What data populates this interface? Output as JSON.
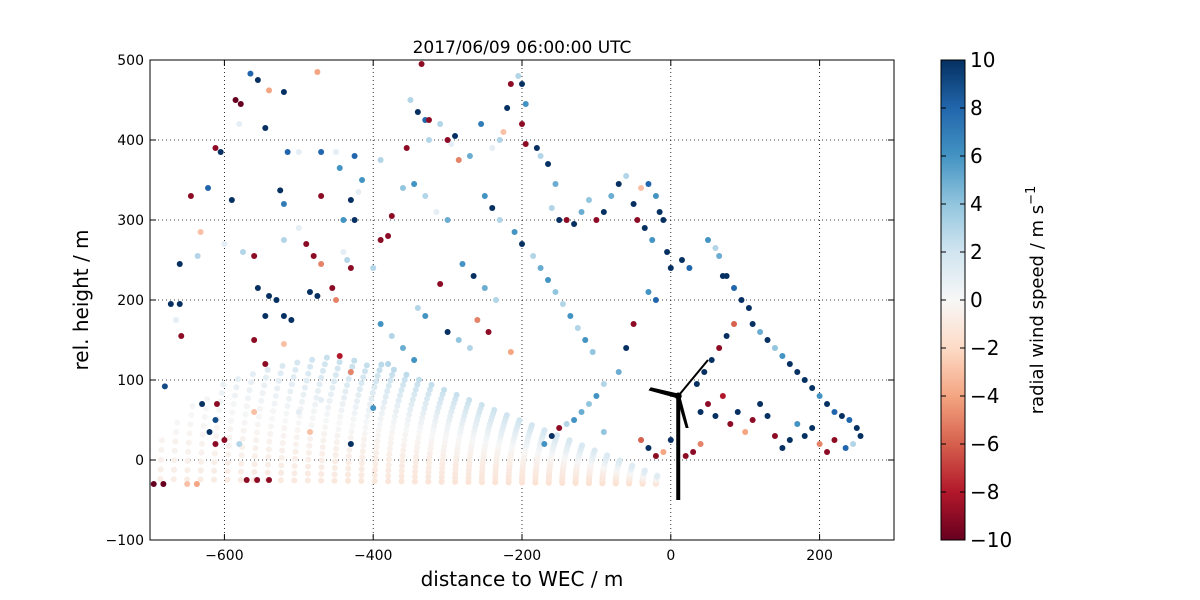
{
  "chart_data": {
    "type": "scatter",
    "title": "2017/06/09 06:00:00 UTC",
    "xlabel": "distance to WEC / m",
    "ylabel": "rel. height / m",
    "xlim": [
      -700,
      300
    ],
    "ylim": [
      -100,
      500
    ],
    "xticks": [
      "−600",
      "−400",
      "−200",
      "0",
      "200"
    ],
    "yticks": [
      "−100",
      "0",
      "100",
      "200",
      "300",
      "400",
      "500"
    ],
    "grid": true,
    "colorbar": {
      "label": "radial wind speed / m s",
      "label_superscript": "−1",
      "range": [
        -10,
        10
      ],
      "ticks": [
        "−10",
        "−8",
        "−6",
        "−4",
        "−2",
        "0",
        "2",
        "4",
        "6",
        "8",
        "10"
      ],
      "colormap": "RdBu"
    },
    "scan_origin": [
      10,
      -30
    ],
    "turbine": {
      "hub": [
        10,
        80
      ],
      "tower_base": [
        10,
        -50
      ]
    },
    "rays": [
      {
        "angle_deg": 0.5,
        "range_max": 760,
        "v0": -1.8,
        "v1": -0.6
      },
      {
        "angle_deg": 1.5,
        "range_max": 760,
        "v0": -1.6,
        "v1": -0.5
      },
      {
        "angle_deg": 2.5,
        "range_max": 740,
        "v0": -1.5,
        "v1": -0.4
      },
      {
        "angle_deg": 3.5,
        "range_max": 720,
        "v0": -1.4,
        "v1": -0.3
      },
      {
        "angle_deg": 4.5,
        "range_max": 700,
        "v0": -1.3,
        "v1": -0.3
      },
      {
        "angle_deg": 5.5,
        "range_max": 690,
        "v0": -1.2,
        "v1": -0.2
      },
      {
        "angle_deg": 6.5,
        "range_max": 680,
        "v0": -1.0,
        "v1": -0.1
      },
      {
        "angle_deg": 7.5,
        "range_max": 670,
        "v0": -0.9,
        "v1": 0.0
      },
      {
        "angle_deg": 8.5,
        "range_max": 660,
        "v0": -0.8,
        "v1": 0.2
      },
      {
        "angle_deg": 9.5,
        "range_max": 650,
        "v0": -0.7,
        "v1": 0.3
      },
      {
        "angle_deg": 10.5,
        "range_max": 640,
        "v0": -0.6,
        "v1": 0.5
      },
      {
        "angle_deg": 11.5,
        "range_max": 630,
        "v0": -0.4,
        "v1": 0.7
      },
      {
        "angle_deg": 12.5,
        "range_max": 620,
        "v0": -0.2,
        "v1": 0.9
      },
      {
        "angle_deg": 13.5,
        "range_max": 600,
        "v0": 0.0,
        "v1": 1.1
      },
      {
        "angle_deg": 14.5,
        "range_max": 580,
        "v0": 0.2,
        "v1": 1.3
      },
      {
        "angle_deg": 15.5,
        "range_max": 560,
        "v0": 0.3,
        "v1": 1.6
      },
      {
        "angle_deg": 16.5,
        "range_max": 540,
        "v0": 0.5,
        "v1": 1.8
      },
      {
        "angle_deg": 17.5,
        "range_max": 520,
        "v0": 0.6,
        "v1": 2.0
      },
      {
        "angle_deg": 18.5,
        "range_max": 500,
        "v0": 0.8,
        "v1": 2.3
      },
      {
        "angle_deg": 19.5,
        "range_max": 470,
        "v0": 0.9,
        "v1": 2.5
      },
      {
        "angle_deg": 20.5,
        "range_max": 440,
        "v0": 1.0,
        "v1": 2.8
      }
    ],
    "outliers": [
      [
        -680,
        92,
        9
      ],
      [
        -695,
        -30,
        -10
      ],
      [
        -682,
        -30,
        -10
      ],
      [
        -650,
        -30,
        -3
      ],
      [
        -637,
        -30,
        -4
      ],
      [
        -660,
        245,
        10
      ],
      [
        -665,
        175,
        1
      ],
      [
        -672,
        195,
        10
      ],
      [
        -660,
        195,
        10
      ],
      [
        -658,
        155,
        -9
      ],
      [
        -645,
        330,
        -9
      ],
      [
        -632,
        285,
        -3
      ],
      [
        -636,
        255,
        3
      ],
      [
        -622,
        340,
        8
      ],
      [
        -630,
        70,
        10
      ],
      [
        -620,
        35,
        10
      ],
      [
        -612,
        50,
        9
      ],
      [
        -610,
        70,
        -9
      ],
      [
        -612,
        20,
        -9
      ],
      [
        -600,
        25,
        -9
      ],
      [
        -612,
        390,
        -9
      ],
      [
        -605,
        385,
        10
      ],
      [
        -590,
        325,
        10
      ],
      [
        -580,
        420,
        1
      ],
      [
        -585,
        450,
        -10
      ],
      [
        -578,
        445,
        -10
      ],
      [
        -565,
        483,
        8
      ],
      [
        -555,
        475,
        10
      ],
      [
        -540,
        462,
        -4
      ],
      [
        -545,
        415,
        10
      ],
      [
        -520,
        460,
        10
      ],
      [
        -525,
        337,
        10
      ],
      [
        -520,
        320,
        7
      ],
      [
        -515,
        385,
        8
      ],
      [
        -500,
        385,
        1
      ],
      [
        -560,
        255,
        -9
      ],
      [
        -555,
        215,
        10
      ],
      [
        -540,
        205,
        10
      ],
      [
        -530,
        200,
        10
      ],
      [
        -520,
        180,
        10
      ],
      [
        -510,
        175,
        10
      ],
      [
        -545,
        180,
        10
      ],
      [
        -575,
        260,
        3
      ],
      [
        -560,
        150,
        -9
      ],
      [
        -545,
        120,
        -9
      ],
      [
        -520,
        145,
        -3
      ],
      [
        -540,
        -25,
        -9
      ],
      [
        -556,
        -25,
        -9
      ],
      [
        -570,
        -25,
        -9
      ],
      [
        -475,
        485,
        -4
      ],
      [
        -470,
        385,
        8
      ],
      [
        -450,
        385,
        1
      ],
      [
        -445,
        365,
        6
      ],
      [
        -425,
        380,
        8
      ],
      [
        -415,
        350,
        6
      ],
      [
        -420,
        335,
        1
      ],
      [
        -430,
        325,
        10
      ],
      [
        -425,
        300,
        10
      ],
      [
        -440,
        300,
        6
      ],
      [
        -470,
        330,
        -9
      ],
      [
        -485,
        210,
        10
      ],
      [
        -475,
        205,
        10
      ],
      [
        -470,
        245,
        -5
      ],
      [
        -490,
        270,
        -9
      ],
      [
        -480,
        255,
        -9
      ],
      [
        -440,
        260,
        1
      ],
      [
        -435,
        250,
        3
      ],
      [
        -430,
        240,
        -9
      ],
      [
        -455,
        215,
        -9
      ],
      [
        -450,
        200,
        -5
      ],
      [
        -445,
        130,
        -8
      ],
      [
        -430,
        110,
        -5
      ],
      [
        -400,
        240,
        3
      ],
      [
        -390,
        275,
        -9
      ],
      [
        -380,
        280,
        -9
      ],
      [
        -390,
        375,
        3
      ],
      [
        -375,
        305,
        -9
      ],
      [
        -350,
        450,
        3
      ],
      [
        -335,
        495,
        -9
      ],
      [
        -340,
        435,
        10
      ],
      [
        -330,
        425,
        8
      ],
      [
        -355,
        390,
        -9
      ],
      [
        -325,
        400,
        3
      ],
      [
        -310,
        420,
        3
      ],
      [
        -325,
        425,
        -9
      ],
      [
        -360,
        340,
        4
      ],
      [
        -345,
        345,
        6
      ],
      [
        -330,
        330,
        3
      ],
      [
        -315,
        310,
        1
      ],
      [
        -300,
        300,
        5
      ],
      [
        -310,
        220,
        -9
      ],
      [
        -295,
        395,
        1
      ],
      [
        -290,
        405,
        10
      ],
      [
        -285,
        375,
        -5
      ],
      [
        -270,
        380,
        5
      ],
      [
        -255,
        420,
        7
      ],
      [
        -240,
        390,
        1
      ],
      [
        -230,
        400,
        3
      ],
      [
        -225,
        410,
        -3
      ],
      [
        -220,
        440,
        10
      ],
      [
        -215,
        470,
        -9
      ],
      [
        -205,
        480,
        3
      ],
      [
        -200,
        470,
        10
      ],
      [
        -195,
        445,
        6
      ],
      [
        -200,
        420,
        -9
      ],
      [
        -195,
        395,
        -9
      ],
      [
        -180,
        390,
        10
      ],
      [
        -175,
        380,
        3
      ],
      [
        -165,
        370,
        10
      ],
      [
        -155,
        345,
        5
      ],
      [
        -160,
        315,
        3
      ],
      [
        -150,
        300,
        10
      ],
      [
        -140,
        300,
        -9
      ],
      [
        -130,
        295,
        10
      ],
      [
        -120,
        310,
        5
      ],
      [
        -110,
        325,
        4
      ],
      [
        -100,
        300,
        -9
      ],
      [
        -90,
        310,
        10
      ],
      [
        -80,
        330,
        5
      ],
      [
        -70,
        345,
        10
      ],
      [
        -60,
        355,
        3
      ],
      [
        -50,
        320,
        10
      ],
      [
        -45,
        300,
        -9
      ],
      [
        -35,
        290,
        10
      ],
      [
        -25,
        275,
        6
      ],
      [
        -40,
        340,
        -3
      ],
      [
        -30,
        345,
        8
      ],
      [
        -20,
        330,
        6
      ],
      [
        -15,
        310,
        10
      ],
      [
        -10,
        300,
        10
      ],
      [
        -5,
        260,
        10
      ],
      [
        0,
        240,
        10
      ],
      [
        15,
        250,
        10
      ],
      [
        25,
        240,
        8
      ],
      [
        50,
        275,
        6
      ],
      [
        60,
        265,
        3
      ],
      [
        65,
        255,
        5
      ],
      [
        70,
        230,
        10
      ],
      [
        75,
        230,
        10
      ],
      [
        85,
        215,
        8
      ],
      [
        95,
        200,
        10
      ],
      [
        105,
        190,
        10
      ],
      [
        110,
        170,
        10
      ],
      [
        120,
        160,
        5
      ],
      [
        130,
        150,
        10
      ],
      [
        140,
        140,
        4
      ],
      [
        150,
        130,
        6
      ],
      [
        160,
        120,
        10
      ],
      [
        170,
        110,
        10
      ],
      [
        180,
        100,
        10
      ],
      [
        190,
        90,
        10
      ],
      [
        200,
        80,
        6
      ],
      [
        210,
        70,
        10
      ],
      [
        220,
        60,
        8
      ],
      [
        230,
        55,
        10
      ],
      [
        240,
        50,
        8
      ],
      [
        250,
        40,
        10
      ],
      [
        255,
        30,
        10
      ],
      [
        245,
        20,
        3
      ],
      [
        235,
        15,
        8
      ],
      [
        220,
        25,
        -9
      ],
      [
        210,
        10,
        -9
      ],
      [
        200,
        20,
        -5
      ],
      [
        190,
        40,
        10
      ],
      [
        180,
        30,
        10
      ],
      [
        170,
        45,
        6
      ],
      [
        160,
        25,
        10
      ],
      [
        150,
        15,
        10
      ],
      [
        140,
        30,
        -9
      ],
      [
        130,
        55,
        10
      ],
      [
        120,
        70,
        10
      ],
      [
        110,
        50,
        -9
      ],
      [
        100,
        35,
        -4
      ],
      [
        90,
        60,
        10
      ],
      [
        80,
        45,
        -9
      ],
      [
        70,
        80,
        -8
      ],
      [
        60,
        55,
        10
      ],
      [
        50,
        70,
        -9
      ],
      [
        40,
        60,
        10
      ],
      [
        35,
        95,
        10
      ],
      [
        45,
        110,
        10
      ],
      [
        55,
        125,
        10
      ],
      [
        65,
        140,
        -9
      ],
      [
        75,
        155,
        10
      ],
      [
        85,
        170,
        -6
      ],
      [
        -20,
        200,
        8
      ],
      [
        -30,
        210,
        6
      ],
      [
        -50,
        170,
        -9
      ],
      [
        -60,
        140,
        10
      ],
      [
        -70,
        110,
        5
      ],
      [
        -90,
        95,
        3
      ],
      [
        -100,
        80,
        6
      ],
      [
        -110,
        70,
        4
      ],
      [
        -120,
        60,
        5
      ],
      [
        -130,
        50,
        6
      ],
      [
        -140,
        45,
        3
      ],
      [
        -150,
        40,
        -9
      ],
      [
        -160,
        30,
        10
      ],
      [
        -170,
        20,
        6
      ],
      [
        -90,
        35,
        4
      ],
      [
        -40,
        25,
        -6
      ],
      [
        -30,
        15,
        10
      ],
      [
        -20,
        5,
        -9
      ],
      [
        -10,
        10,
        -4
      ],
      [
        0,
        25,
        10
      ],
      [
        20,
        5,
        -9
      ],
      [
        30,
        10,
        -9
      ],
      [
        40,
        20,
        -5
      ],
      [
        -250,
        330,
        6
      ],
      [
        -240,
        315,
        10
      ],
      [
        -230,
        300,
        3
      ],
      [
        -210,
        285,
        6
      ],
      [
        -200,
        270,
        10
      ],
      [
        -185,
        255,
        3
      ],
      [
        -175,
        240,
        5
      ],
      [
        -165,
        225,
        6
      ],
      [
        -155,
        210,
        4
      ],
      [
        -145,
        195,
        3
      ],
      [
        -135,
        180,
        6
      ],
      [
        -125,
        165,
        3
      ],
      [
        -115,
        150,
        6
      ],
      [
        -105,
        135,
        4
      ],
      [
        -280,
        245,
        6
      ],
      [
        -265,
        230,
        10
      ],
      [
        -250,
        215,
        5
      ],
      [
        -235,
        200,
        3
      ],
      [
        -340,
        190,
        3
      ],
      [
        -330,
        180,
        6
      ],
      [
        -300,
        160,
        10
      ],
      [
        -285,
        150,
        4
      ],
      [
        -270,
        140,
        3
      ],
      [
        -390,
        170,
        6
      ],
      [
        -375,
        155,
        3
      ],
      [
        -360,
        140,
        5
      ],
      [
        -345,
        125,
        6
      ],
      [
        -380,
        120,
        3
      ],
      [
        -300,
        400,
        -9
      ],
      [
        -245,
        160,
        -9
      ],
      [
        -260,
        175,
        -5
      ],
      [
        -215,
        135,
        -4
      ],
      [
        -560,
        60,
        -3
      ],
      [
        -580,
        20,
        3
      ],
      [
        -470,
        75,
        1
      ],
      [
        -430,
        20,
        10
      ],
      [
        -400,
        65,
        6
      ],
      [
        -485,
        35,
        -3
      ],
      [
        -500,
        60,
        1
      ],
      [
        -600,
        270,
        1
      ],
      [
        -500,
        290,
        1
      ],
      [
        -520,
        275,
        3
      ]
    ]
  }
}
